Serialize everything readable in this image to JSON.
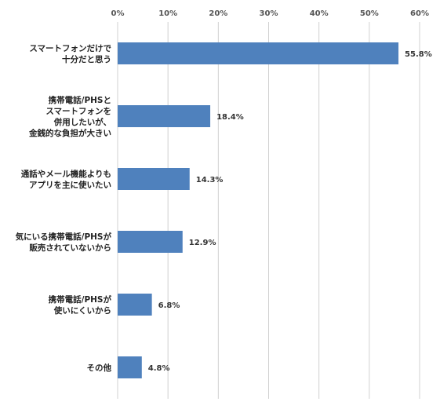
{
  "chart_data": {
    "type": "bar",
    "orientation": "horizontal",
    "title": "",
    "xlabel": "",
    "ylabel": "",
    "xlim": [
      0,
      60
    ],
    "x_ticks": [
      "0%",
      "10%",
      "20%",
      "30%",
      "40%",
      "50%",
      "60%"
    ],
    "tick_position": "top",
    "grid": true,
    "bar_color": "#4f81bd",
    "categories": [
      [
        "スマートフォンだけで",
        "十分だと思う"
      ],
      [
        "携帯電話/PHSと",
        "スマートフォンを",
        "併用したいが、",
        "金銭的な負担が大きい"
      ],
      [
        "通話やメール機能よりも",
        "アプリを主に使いたい"
      ],
      [
        "気にいる携帯電話/PHSが",
        "販売されていないから"
      ],
      [
        "携帯電話/PHSが",
        "使いにくいから"
      ],
      [
        "その他"
      ]
    ],
    "values": [
      55.8,
      18.4,
      14.3,
      12.9,
      6.8,
      4.8
    ],
    "value_labels": [
      "55.8%",
      "18.4%",
      "14.3%",
      "12.9%",
      "6.8%",
      "4.8%"
    ]
  }
}
